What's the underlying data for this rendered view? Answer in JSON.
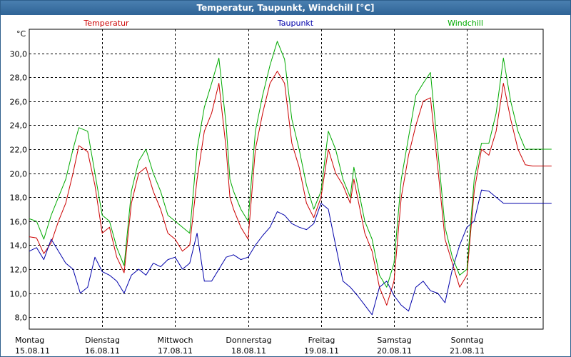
{
  "chart_data": {
    "type": "line",
    "title": "Temperatur, Taupunkt, Windchill [°C]",
    "ylabel": "°C",
    "ylim": [
      7,
      32
    ],
    "yticks": [
      8,
      10,
      12,
      14,
      16,
      18,
      20,
      22,
      24,
      26,
      28,
      30
    ],
    "ytick_labels": [
      "8,0",
      "10,0",
      "12,0",
      "14,0",
      "16,0",
      "18,0",
      "20,0",
      "22,0",
      "24,0",
      "26,0",
      "28,0",
      "30,0"
    ],
    "xlim": [
      0,
      7.16
    ],
    "days": [
      {
        "weekday": "Montag",
        "date": "15.08.11"
      },
      {
        "weekday": "Dienstag",
        "date": "16.08.11"
      },
      {
        "weekday": "Mittwoch",
        "date": "17.08.11"
      },
      {
        "weekday": "Donnerstag",
        "date": "18.08.11"
      },
      {
        "weekday": "Freitag",
        "date": "19.08.11"
      },
      {
        "weekday": "Samstag",
        "date": "20.08.11"
      },
      {
        "weekday": "Sonntag",
        "date": "21.08.11"
      }
    ],
    "grid": true,
    "legend_position": "top",
    "series": [
      {
        "name": "Temperatur",
        "color": "#cc0000",
        "x": [
          0,
          0.1,
          0.2,
          0.3,
          0.4,
          0.5,
          0.6,
          0.68,
          0.8,
          0.9,
          1.0,
          1.1,
          1.2,
          1.3,
          1.4,
          1.5,
          1.6,
          1.7,
          1.8,
          1.9,
          2.0,
          2.1,
          2.2,
          2.3,
          2.4,
          2.5,
          2.6,
          2.7,
          2.75,
          2.8,
          2.9,
          3.0,
          3.1,
          3.2,
          3.3,
          3.4,
          3.5,
          3.6,
          3.7,
          3.8,
          3.9,
          4.0,
          4.1,
          4.2,
          4.3,
          4.4,
          4.45,
          4.5,
          4.6,
          4.7,
          4.8,
          4.9,
          5.0,
          5.1,
          5.2,
          5.3,
          5.4,
          5.5,
          5.6,
          5.7,
          5.8,
          5.9,
          6.0,
          6.1,
          6.2,
          6.3,
          6.4,
          6.5,
          6.6,
          6.7,
          6.8,
          6.9,
          7.0,
          7.1,
          7.16
        ],
        "values": [
          14.7,
          14.6,
          13.3,
          14.2,
          16.0,
          17.5,
          20.0,
          22.3,
          21.8,
          19.0,
          15.0,
          15.5,
          13.0,
          11.7,
          17.5,
          20.0,
          20.5,
          18.5,
          17.0,
          15.0,
          14.5,
          13.5,
          14.0,
          19.5,
          23.5,
          25.0,
          27.5,
          22.0,
          18.0,
          17.0,
          15.5,
          14.5,
          22.0,
          25.0,
          27.5,
          28.5,
          27.5,
          22.5,
          20.5,
          17.5,
          16.3,
          18.0,
          22.0,
          20.0,
          19.0,
          17.5,
          19.5,
          18.0,
          15.0,
          13.5,
          10.5,
          9.0,
          11.0,
          18.0,
          21.5,
          24.0,
          26.0,
          26.3,
          20.5,
          14.5,
          12.5,
          10.5,
          11.5,
          18.5,
          22.0,
          21.5,
          23.5,
          27.5,
          24.5,
          22.0,
          20.7,
          20.6,
          20.6,
          20.6,
          20.6
        ]
      },
      {
        "name": "Taupunkt",
        "color": "#0000aa",
        "x": [
          0,
          0.1,
          0.2,
          0.3,
          0.4,
          0.5,
          0.6,
          0.7,
          0.8,
          0.9,
          1.0,
          1.1,
          1.2,
          1.3,
          1.4,
          1.5,
          1.6,
          1.7,
          1.8,
          1.9,
          2.0,
          2.1,
          2.2,
          2.3,
          2.4,
          2.5,
          2.6,
          2.7,
          2.8,
          2.9,
          3.0,
          3.1,
          3.2,
          3.3,
          3.4,
          3.5,
          3.6,
          3.7,
          3.8,
          3.9,
          4.0,
          4.1,
          4.2,
          4.3,
          4.4,
          4.5,
          4.6,
          4.7,
          4.8,
          4.9,
          5.0,
          5.1,
          5.2,
          5.3,
          5.4,
          5.5,
          5.6,
          5.7,
          5.8,
          5.9,
          6.0,
          6.1,
          6.2,
          6.3,
          6.4,
          6.5,
          6.6,
          6.7,
          6.8,
          6.9,
          7.0,
          7.1,
          7.16
        ],
        "values": [
          13.5,
          13.8,
          12.8,
          14.5,
          13.5,
          12.5,
          12.0,
          10.0,
          10.5,
          13.0,
          11.8,
          11.5,
          11.0,
          10.0,
          11.5,
          12.0,
          11.5,
          12.5,
          12.2,
          12.8,
          13.0,
          12.0,
          12.5,
          15.0,
          11.0,
          11.0,
          12.0,
          13.0,
          13.2,
          12.8,
          13.0,
          14.0,
          14.8,
          15.5,
          16.8,
          16.5,
          15.8,
          15.5,
          15.3,
          15.8,
          17.5,
          17.0,
          14.0,
          11.0,
          10.5,
          9.8,
          9.0,
          8.2,
          10.5,
          11.0,
          9.8,
          9.0,
          8.5,
          10.5,
          11.0,
          10.2,
          10.0,
          9.2,
          12.0,
          14.0,
          15.5,
          16.0,
          18.6,
          18.5,
          18.0,
          17.5,
          17.5,
          17.5,
          17.5,
          17.5,
          17.5,
          17.5,
          17.5
        ]
      },
      {
        "name": "Windchill",
        "color": "#00aa00",
        "x": [
          0,
          0.1,
          0.2,
          0.3,
          0.4,
          0.5,
          0.6,
          0.68,
          0.8,
          0.9,
          1.0,
          1.1,
          1.2,
          1.3,
          1.4,
          1.5,
          1.6,
          1.7,
          1.8,
          1.9,
          2.0,
          2.1,
          2.2,
          2.3,
          2.4,
          2.5,
          2.6,
          2.7,
          2.75,
          2.8,
          2.9,
          3.0,
          3.1,
          3.2,
          3.3,
          3.4,
          3.5,
          3.6,
          3.7,
          3.8,
          3.9,
          4.0,
          4.1,
          4.2,
          4.3,
          4.4,
          4.45,
          4.5,
          4.6,
          4.7,
          4.8,
          4.9,
          5.0,
          5.1,
          5.2,
          5.3,
          5.4,
          5.5,
          5.6,
          5.7,
          5.8,
          5.9,
          6.0,
          6.1,
          6.2,
          6.3,
          6.4,
          6.5,
          6.6,
          6.7,
          6.8,
          6.9,
          7.0,
          7.1,
          7.16
        ],
        "values": [
          16.2,
          16.0,
          14.5,
          16.5,
          18.0,
          19.5,
          22.0,
          23.8,
          23.5,
          20.0,
          16.5,
          16.0,
          13.8,
          12.3,
          18.5,
          21.0,
          22.0,
          20.0,
          18.5,
          16.5,
          16.0,
          15.5,
          15.0,
          22.0,
          25.5,
          27.5,
          29.6,
          24.0,
          19.5,
          18.5,
          17.0,
          16.0,
          23.5,
          26.5,
          29.0,
          31.0,
          29.5,
          24.5,
          22.0,
          19.0,
          17.0,
          18.5,
          23.5,
          22.0,
          19.5,
          18.0,
          20.5,
          19.0,
          16.0,
          14.5,
          11.5,
          10.5,
          12.5,
          19.5,
          23.0,
          26.5,
          27.5,
          28.4,
          22.0,
          15.5,
          13.0,
          11.5,
          12.0,
          19.5,
          22.5,
          22.5,
          25.0,
          29.6,
          26.0,
          23.5,
          22.0,
          22.0,
          22.0,
          22.0,
          22.0
        ]
      }
    ]
  }
}
